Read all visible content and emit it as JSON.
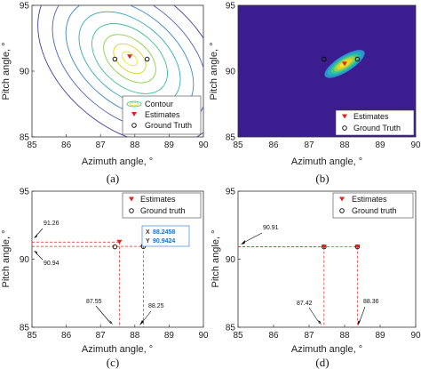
{
  "chart_data": [
    {
      "id": "a",
      "type": "contour",
      "panel_label": "(a)",
      "xlabel": "Azimuth angle, °",
      "ylabel": "Pitch angle, °",
      "xlim": [
        85,
        90
      ],
      "ylim": [
        85,
        95
      ],
      "xticks": [
        "85",
        "86",
        "87",
        "88",
        "89",
        "90"
      ],
      "yticks": [
        "85",
        "90",
        "95"
      ],
      "legend": [
        "Contour",
        "Estimates",
        "Ground Truth"
      ],
      "legend_position": "bottom-right",
      "contour_center": [
        87.85,
        90.95
      ],
      "estimates": [
        {
          "x": 87.85,
          "y": 91.1
        }
      ],
      "ground_truth": [
        {
          "x": 87.42,
          "y": 90.91
        },
        {
          "x": 88.36,
          "y": 90.91
        }
      ]
    },
    {
      "id": "b",
      "type": "heatmap",
      "panel_label": "(b)",
      "xlabel": "Azimuth angle, °",
      "ylabel": "Pitch angle, °",
      "xlim": [
        85,
        90
      ],
      "ylim": [
        85,
        95
      ],
      "xticks": [
        "85",
        "86",
        "87",
        "88",
        "89",
        "90"
      ],
      "yticks": [
        "85",
        "90",
        "95"
      ],
      "legend": [
        "Estimates",
        "Ground Truth"
      ],
      "legend_position": "bottom-right",
      "background_color": "#3b1d8f",
      "estimates": [
        {
          "x": 88.0,
          "y": 90.55
        }
      ],
      "ground_truth": [
        {
          "x": 87.42,
          "y": 90.91
        },
        {
          "x": 88.36,
          "y": 90.91
        }
      ]
    },
    {
      "id": "c",
      "type": "scatter",
      "panel_label": "(c)",
      "xlabel": "Azimuth angle, °",
      "ylabel": "Pitch angle, °",
      "xlim": [
        85,
        90
      ],
      "ylim": [
        85,
        95
      ],
      "xticks": [
        "85",
        "86",
        "87",
        "88",
        "89",
        "90"
      ],
      "yticks": [
        "85",
        "90",
        "95"
      ],
      "legend": [
        "Estimates",
        "Ground truth"
      ],
      "legend_position": "top-right",
      "estimates": [
        {
          "x": 87.55,
          "y": 91.26
        }
      ],
      "ground_truth": [
        {
          "x": 87.42,
          "y": 90.91
        },
        {
          "x": 88.25,
          "y": 90.94
        }
      ],
      "annotations": [
        "91.26",
        "90.94",
        "87.55",
        "88.25"
      ],
      "datatip": {
        "x_label": "X",
        "x_value": "88.2458",
        "y_label": "Y",
        "y_value": "90.9424"
      }
    },
    {
      "id": "d",
      "type": "scatter",
      "panel_label": "(d)",
      "xlabel": "Azimuth angle, °",
      "ylabel": "Pitch angle, °",
      "xlim": [
        85,
        90
      ],
      "ylim": [
        85,
        95
      ],
      "xticks": [
        "85",
        "86",
        "87",
        "88",
        "89",
        "90"
      ],
      "yticks": [
        "85",
        "90",
        "95"
      ],
      "legend": [
        "Estimates",
        "Ground truth"
      ],
      "legend_position": "top-right",
      "estimates": [
        {
          "x": 87.42,
          "y": 90.91
        },
        {
          "x": 88.36,
          "y": 90.91
        }
      ],
      "ground_truth": [
        {
          "x": 87.42,
          "y": 90.91
        },
        {
          "x": 88.36,
          "y": 90.91
        }
      ],
      "annotations": [
        "90.91",
        "87.42",
        "88.36"
      ]
    }
  ],
  "colors": {
    "estimate": "#e8201c",
    "ground_truth": "#000000",
    "guide": "#e8201c",
    "datatip_text": "#1a6fd4",
    "contour": [
      "#3b3f9a",
      "#4a5fb8",
      "#3d85c8",
      "#2fa7b8",
      "#3cbf8c",
      "#8bcf4f",
      "#d6d42d",
      "#f2e52a"
    ]
  }
}
